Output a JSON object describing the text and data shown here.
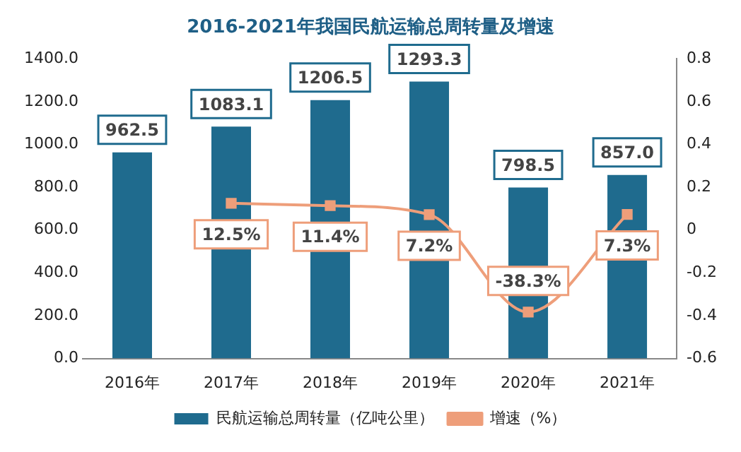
{
  "chart_data": {
    "type": "bar",
    "title": "2016-2021年我国民航运输总周转量及增速",
    "categories": [
      "2016年",
      "2017年",
      "2018年",
      "2019年",
      "2020年",
      "2021年"
    ],
    "series": [
      {
        "name": "民航运输总周转量（亿吨公里）",
        "color": "#1f6b8e",
        "values": [
          962.5,
          1083.1,
          1206.5,
          1293.3,
          798.5,
          857.0
        ],
        "value_labels": [
          "962.5",
          "1083.1",
          "1206.5",
          "1293.3",
          "798.5",
          "857.0"
        ]
      },
      {
        "name": "增速（%）",
        "type": "line",
        "axis": "y2",
        "color": "#ee9e7a",
        "marker": "square",
        "values": [
          null,
          0.125,
          0.114,
          0.072,
          -0.383,
          0.073
        ],
        "value_labels": [
          null,
          "12.5%",
          "11.4%",
          "7.2%",
          "-38.3%",
          "7.3%"
        ]
      }
    ],
    "ylim": [
      0,
      1400
    ],
    "yticks": [
      {
        "value": 0,
        "label": "0.0"
      },
      {
        "value": 200,
        "label": "200.0"
      },
      {
        "value": 400,
        "label": "400.0"
      },
      {
        "value": 600,
        "label": "600.0"
      },
      {
        "value": 800,
        "label": "800.0"
      },
      {
        "value": 1000,
        "label": "1000.0"
      },
      {
        "value": 1200,
        "label": "1200.0"
      },
      {
        "value": 1400,
        "label": "1400.0"
      }
    ],
    "y2lim": [
      -0.6,
      0.8
    ],
    "y2ticks": [
      -0.6,
      -0.4,
      -0.2,
      0,
      0.2,
      0.4,
      0.6,
      0.8
    ],
    "grid": false,
    "legend": "bottom"
  }
}
